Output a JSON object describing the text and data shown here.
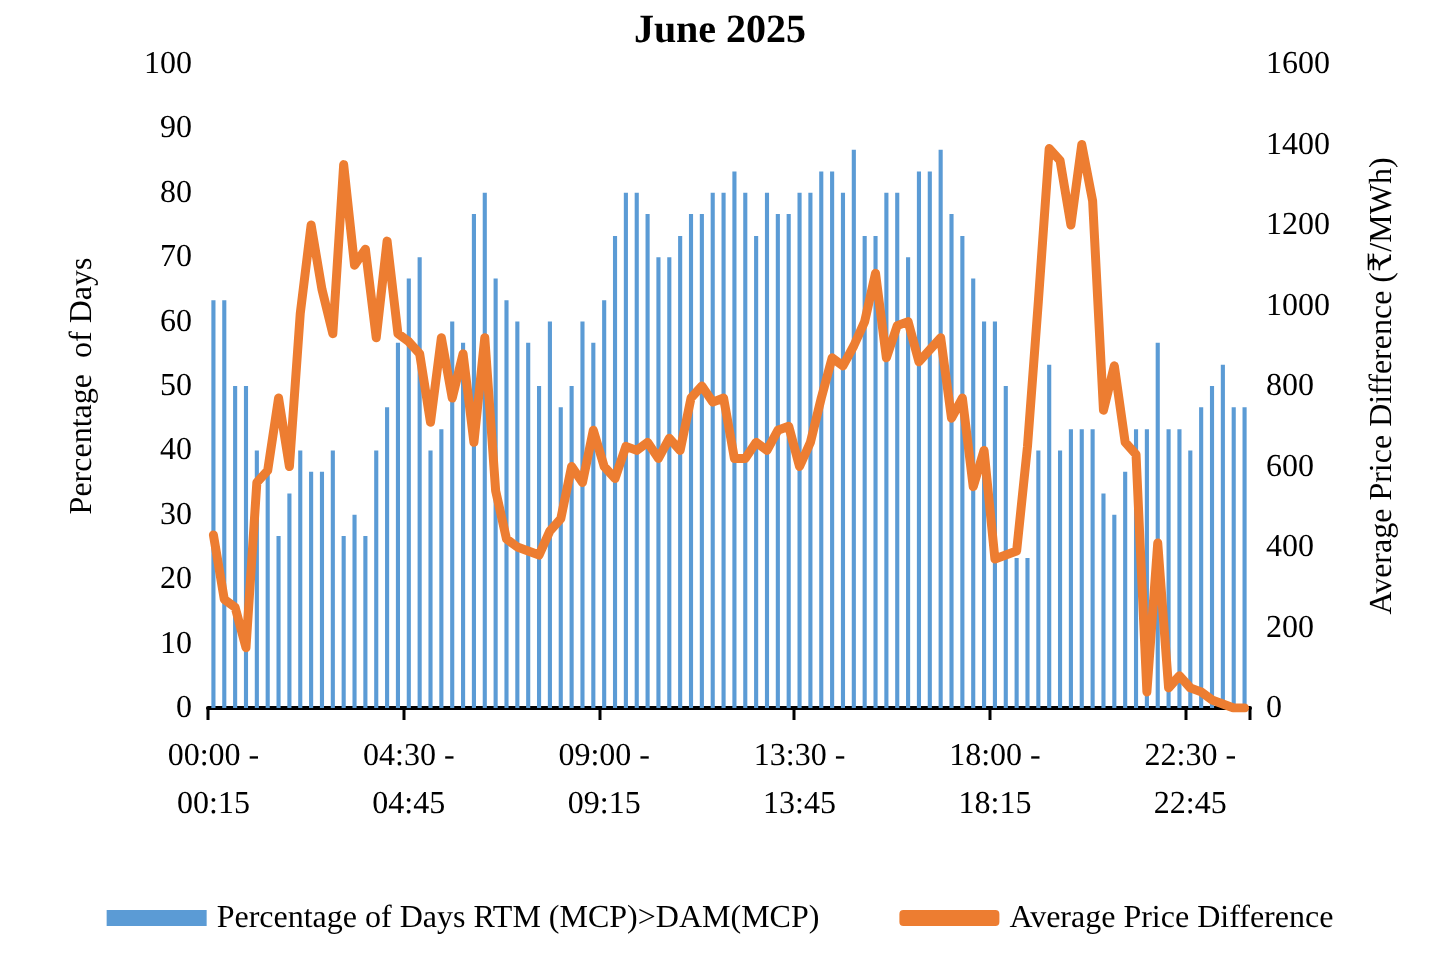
{
  "chart_data": {
    "type": "bar",
    "title": "June 2025",
    "ylabel": "Percentage  of Days",
    "y2label": "Average Price Difference (₹/MWh)",
    "categories": [
      "00:00 - 00:15",
      null,
      null,
      null,
      null,
      null,
      null,
      null,
      null,
      null,
      null,
      null,
      null,
      null,
      null,
      null,
      null,
      null,
      "04:30 - 04:45",
      null,
      null,
      null,
      null,
      null,
      null,
      null,
      null,
      null,
      null,
      null,
      null,
      null,
      null,
      null,
      null,
      null,
      "09:00 - 09:15",
      null,
      null,
      null,
      null,
      null,
      null,
      null,
      null,
      null,
      null,
      null,
      null,
      null,
      null,
      null,
      null,
      null,
      "13:30 - 13:45",
      null,
      null,
      null,
      null,
      null,
      null,
      null,
      null,
      null,
      null,
      null,
      null,
      null,
      null,
      null,
      null,
      null,
      "18:00 - 18:15",
      null,
      null,
      null,
      null,
      null,
      null,
      null,
      null,
      null,
      null,
      null,
      null,
      null,
      null,
      null,
      null,
      null,
      "22:30 - 22:45",
      null,
      null,
      null,
      null,
      null
    ],
    "series": [
      {
        "name": "Percentage of Days RTM (MCP)>DAM(MCP)",
        "color": "#5b9bd5",
        "values": [
          63.3,
          63.3,
          50,
          50,
          40,
          36.7,
          26.7,
          33.3,
          40,
          36.7,
          36.7,
          40,
          26.7,
          30,
          26.7,
          40,
          46.7,
          56.7,
          66.7,
          70,
          40,
          43.3,
          60,
          56.7,
          76.7,
          80,
          66.7,
          63.3,
          60,
          56.7,
          50,
          60,
          46.7,
          50,
          60,
          56.7,
          63.3,
          73.3,
          80,
          80,
          76.7,
          70,
          70,
          73.3,
          76.7,
          76.7,
          80,
          80,
          83.3,
          80,
          73.3,
          80,
          76.7,
          76.7,
          80,
          80,
          83.3,
          83.3,
          80,
          86.7,
          73.3,
          73.3,
          80,
          80,
          70,
          83.3,
          83.3,
          86.7,
          76.7,
          73.3,
          66.7,
          60,
          60,
          50,
          23.3,
          23.3,
          40,
          53.3,
          40,
          43.3,
          43.3,
          43.3,
          33.3,
          30,
          36.7,
          43.3,
          43.3,
          56.7,
          43.3,
          43.3,
          40,
          46.7,
          50,
          53.3,
          46.7,
          46.7
        ]
      },
      {
        "name": "Average Price Difference",
        "type": "line",
        "axis": "y2",
        "color": "#ed7d31",
        "values": [
          430,
          270,
          250,
          150,
          560,
          590,
          770,
          600,
          980,
          1200,
          1040,
          930,
          1350,
          1100,
          1140,
          920,
          1160,
          930,
          910,
          880,
          710,
          920,
          770,
          880,
          660,
          920,
          540,
          420,
          400,
          390,
          380,
          440,
          470,
          600,
          560,
          690,
          600,
          570,
          650,
          640,
          660,
          620,
          670,
          640,
          770,
          800,
          760,
          770,
          620,
          620,
          660,
          640,
          690,
          700,
          600,
          660,
          770,
          870,
          850,
          900,
          960,
          1080,
          870,
          950,
          960,
          860,
          890,
          920,
          720,
          770,
          550,
          640,
          370,
          380,
          390,
          650,
          1010,
          1390,
          1360,
          1200,
          1400,
          1260,
          740,
          850,
          660,
          630,
          40,
          410,
          50,
          80,
          50,
          40,
          20,
          10,
          0,
          0
        ]
      }
    ],
    "ylim": [
      0,
      100
    ],
    "yticks": [
      0,
      10,
      20,
      30,
      40,
      50,
      60,
      70,
      80,
      90,
      100
    ],
    "y2lim": [
      0,
      1600
    ],
    "y2ticks": [
      0,
      200,
      400,
      600,
      800,
      1000,
      1200,
      1400,
      1600
    ],
    "grid": false,
    "legend": "bottom",
    "marker": "none"
  }
}
